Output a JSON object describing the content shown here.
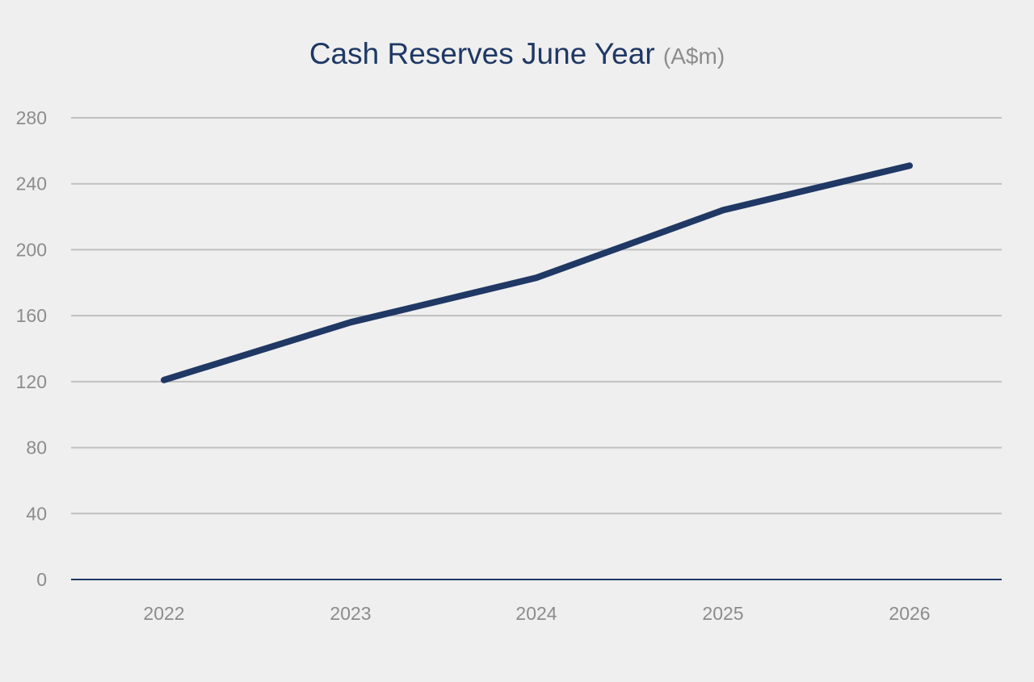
{
  "chart_data": {
    "type": "line",
    "title": "Cash Reserves June Year",
    "title_unit": "(A$m)",
    "xlabel": "",
    "ylabel": "",
    "categories": [
      "2022",
      "2023",
      "2024",
      "2025",
      "2026"
    ],
    "series": [
      {
        "values": [
          121,
          156,
          183,
          224,
          251
        ]
      }
    ],
    "ylim": [
      0,
      280
    ],
    "yticks": [
      "0",
      "40",
      "80",
      "120",
      "160",
      "200",
      "240",
      "280"
    ],
    "grid": true,
    "legend": "none",
    "colors": {
      "line": "#1f3864",
      "grid": "#c0c0c0",
      "axis": "#1f3864",
      "background": "#efefef"
    }
  }
}
